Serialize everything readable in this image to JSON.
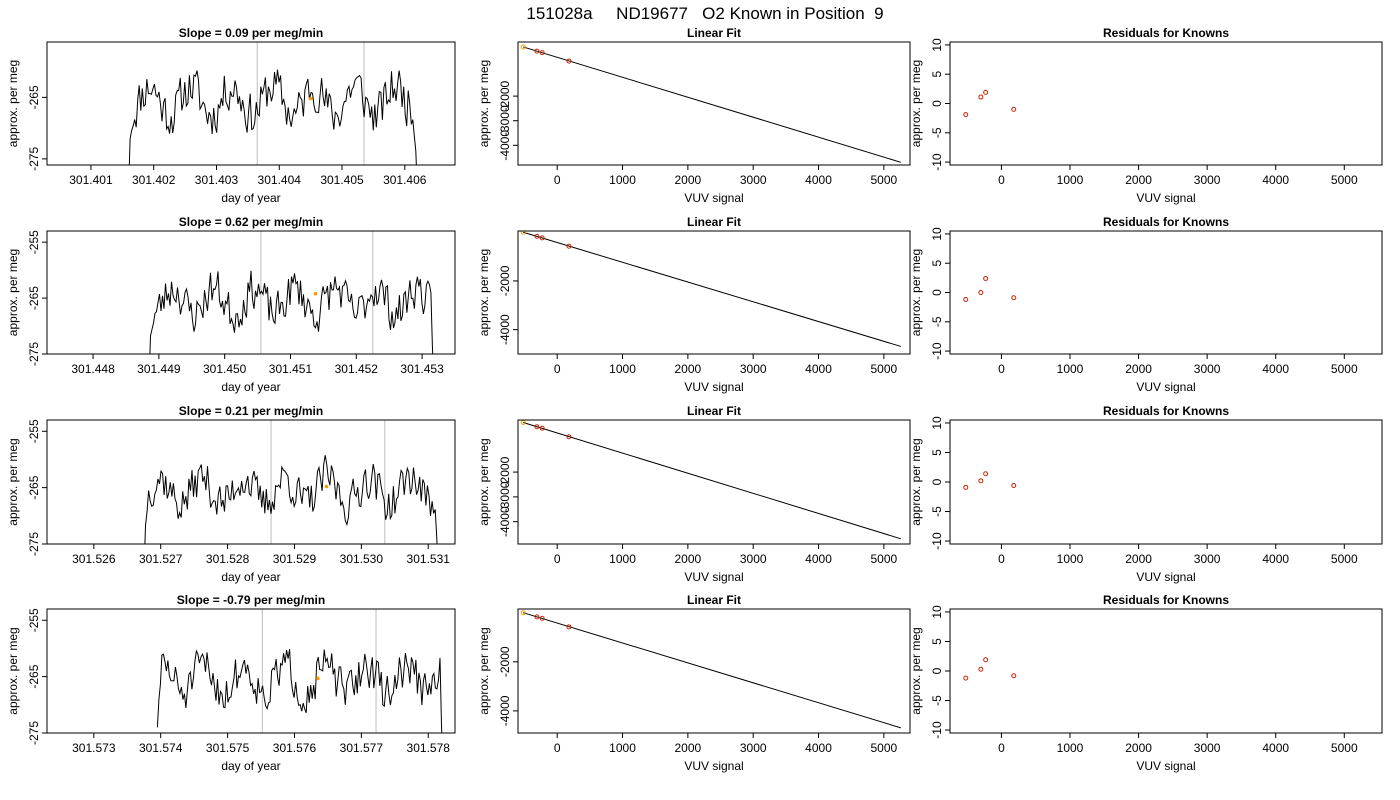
{
  "figure": {
    "title": "151028a     ND19677   O2 Known in Position  9",
    "colors": {
      "line": "#000000",
      "vline": "#c8c8c8",
      "resid_point": "#cc2200",
      "known_point": "#ff9900",
      "fit_point": "#cc2200"
    }
  },
  "chart_data": [
    {
      "type": "line",
      "row": 1,
      "panel": "timeseries",
      "title": "Slope =  0.09  per meg/min",
      "xlabel": "day of year",
      "ylabel": "approx. per meg",
      "xlim": [
        301.4003,
        301.4068
      ],
      "ylim": [
        -276,
        -256
      ],
      "xticks": [
        "301.401",
        "301.402",
        "301.403",
        "301.404",
        "301.405",
        "301.406"
      ],
      "yticks": [
        -265,
        -275
      ],
      "trace_range": [
        301.4016,
        301.4062
      ],
      "trace_start": -280,
      "trace_end": -280,
      "trace_seed": 11,
      "vlines": [
        301.40365,
        301.40535
      ],
      "marker": {
        "x": 301.4045,
        "y": -265.2
      }
    },
    {
      "type": "line",
      "row": 1,
      "panel": "linear_fit",
      "title": "Linear Fit",
      "xlabel": "VUV signal",
      "ylabel": "approx. per meg",
      "xlim": [
        -600,
        5400
      ],
      "ylim": [
        -4800,
        200
      ],
      "xticks": [
        0,
        1000,
        2000,
        3000,
        4000,
        5000
      ],
      "yticks": [
        -2000,
        -3000,
        -4000
      ],
      "line": {
        "x": [
          -520,
          5260
        ],
        "y": [
          -1,
          -4690
        ]
      },
      "points": [
        {
          "x": -520,
          "y": -1
        },
        {
          "x": -310,
          "y": -170
        },
        {
          "x": -230,
          "y": -232
        },
        {
          "x": 180,
          "y": -576
        }
      ]
    },
    {
      "type": "scatter",
      "row": 1,
      "panel": "residuals",
      "title": "Residuals for Knowns",
      "xlabel": "VUV signal",
      "ylabel": "approx. per meg",
      "xlim": [
        -750,
        5550
      ],
      "ylim": [
        -10.5,
        10.5
      ],
      "xticks": [
        0,
        1000,
        2000,
        3000,
        4000,
        5000
      ],
      "yticks": [
        10,
        5,
        0,
        -5,
        -10
      ],
      "points": [
        {
          "x": -520,
          "y": -1.9
        },
        {
          "x": -300,
          "y": 1.1
        },
        {
          "x": -230,
          "y": 1.9
        },
        {
          "x": 180,
          "y": -1.0
        }
      ]
    },
    {
      "type": "line",
      "row": 2,
      "panel": "timeseries",
      "title": "Slope =  0.62  per meg/min",
      "xlabel": "day of year",
      "ylabel": "approx. per meg",
      "xlim": [
        301.4473,
        301.4535
      ],
      "ylim": [
        -275,
        -253
      ],
      "xticks": [
        "301.448",
        "301.449",
        "301.450",
        "301.451",
        "301.452",
        "301.453"
      ],
      "yticks": [
        -255,
        -265,
        -275
      ],
      "trace_range": [
        301.44885,
        301.45318
      ],
      "trace_start": -280,
      "trace_end": -280,
      "trace_seed": 23,
      "vlines": [
        301.45055,
        301.45225
      ],
      "marker": {
        "x": 301.45138,
        "y": -264.2
      }
    },
    {
      "type": "line",
      "row": 2,
      "panel": "linear_fit",
      "title": "Linear Fit",
      "xlabel": "VUV signal",
      "ylabel": "approx. per meg",
      "xlim": [
        -600,
        5400
      ],
      "ylim": [
        -5000,
        50
      ],
      "xticks": [
        0,
        1000,
        2000,
        3000,
        4000,
        5000
      ],
      "yticks": [
        -2000,
        -4000
      ],
      "line": {
        "x": [
          -520,
          5260
        ],
        "y": [
          -1,
          -4690
        ]
      },
      "points": [
        {
          "x": -520,
          "y": -1
        },
        {
          "x": -310,
          "y": -170
        },
        {
          "x": -230,
          "y": -232
        },
        {
          "x": 180,
          "y": -576
        }
      ]
    },
    {
      "type": "scatter",
      "row": 2,
      "panel": "residuals",
      "title": "Residuals for Knowns",
      "xlabel": "VUV signal",
      "ylabel": "approx. per meg",
      "xlim": [
        -750,
        5550
      ],
      "ylim": [
        -10.5,
        10.5
      ],
      "xticks": [
        0,
        1000,
        2000,
        3000,
        4000,
        5000
      ],
      "yticks": [
        10,
        5,
        0,
        -5,
        -10
      ],
      "points": [
        {
          "x": -520,
          "y": -1.2
        },
        {
          "x": -300,
          "y": 0.0
        },
        {
          "x": -230,
          "y": 2.4
        },
        {
          "x": 180,
          "y": -0.9
        }
      ]
    },
    {
      "type": "line",
      "row": 3,
      "panel": "timeseries",
      "title": "Slope =  0.21  per meg/min",
      "xlabel": "day of year",
      "ylabel": "approx. per meg",
      "xlim": [
        301.5253,
        301.5314
      ],
      "ylim": [
        -275,
        -253
      ],
      "xticks": [
        "301.526",
        "301.527",
        "301.528",
        "301.529",
        "301.530",
        "301.531"
      ],
      "yticks": [
        -255,
        -265,
        -275
      ],
      "trace_range": [
        301.52675,
        301.53115
      ],
      "trace_start": -280,
      "trace_end": -280,
      "trace_seed": 37,
      "vlines": [
        301.52865,
        301.53035
      ],
      "marker": {
        "x": 301.52948,
        "y": -264.8
      }
    },
    {
      "type": "line",
      "row": 3,
      "panel": "linear_fit",
      "title": "Linear Fit",
      "xlabel": "VUV signal",
      "ylabel": "approx. per meg",
      "xlim": [
        -600,
        5400
      ],
      "ylim": [
        -4900,
        100
      ],
      "xticks": [
        0,
        1000,
        2000,
        3000,
        4000,
        5000
      ],
      "yticks": [
        -2000,
        -3000,
        -4000
      ],
      "line": {
        "x": [
          -520,
          5260
        ],
        "y": [
          -1,
          -4690
        ]
      },
      "points": [
        {
          "x": -520,
          "y": -1
        },
        {
          "x": -310,
          "y": -170
        },
        {
          "x": -230,
          "y": -232
        },
        {
          "x": 180,
          "y": -576
        }
      ]
    },
    {
      "type": "scatter",
      "row": 3,
      "panel": "residuals",
      "title": "Residuals for Knowns",
      "xlabel": "VUV signal",
      "ylabel": "approx. per meg",
      "xlim": [
        -750,
        5550
      ],
      "ylim": [
        -10.5,
        10.5
      ],
      "xticks": [
        0,
        1000,
        2000,
        3000,
        4000,
        5000
      ],
      "yticks": [
        10,
        5,
        0,
        -5,
        -10
      ],
      "points": [
        {
          "x": -520,
          "y": -0.9
        },
        {
          "x": -300,
          "y": 0.2
        },
        {
          "x": -230,
          "y": 1.4
        },
        {
          "x": 180,
          "y": -0.6
        }
      ]
    },
    {
      "type": "line",
      "row": 4,
      "panel": "timeseries",
      "title": "Slope =  -0.79  per meg/min",
      "xlabel": "day of year",
      "ylabel": "approx. per meg",
      "xlim": [
        301.5723,
        301.5784
      ],
      "ylim": [
        -275,
        -253
      ],
      "xticks": [
        "301.573",
        "301.574",
        "301.575",
        "301.576",
        "301.577",
        "301.578"
      ],
      "yticks": [
        -255,
        -265,
        -275
      ],
      "trace_range": [
        301.57395,
        301.57822
      ],
      "trace_start": -274,
      "trace_end": -280,
      "trace_seed": 51,
      "vlines": [
        301.57552,
        301.57722
      ],
      "marker": {
        "x": 301.57635,
        "y": -265.3
      }
    },
    {
      "type": "line",
      "row": 4,
      "panel": "linear_fit",
      "title": "Linear Fit",
      "xlabel": "VUV signal",
      "ylabel": "approx. per meg",
      "xlim": [
        -600,
        5400
      ],
      "ylim": [
        -4900,
        150
      ],
      "xticks": [
        0,
        1000,
        2000,
        3000,
        4000,
        5000
      ],
      "yticks": [
        -2000,
        -4000
      ],
      "line": {
        "x": [
          -520,
          5260
        ],
        "y": [
          -1,
          -4690
        ]
      },
      "points": [
        {
          "x": -520,
          "y": -1
        },
        {
          "x": -310,
          "y": -170
        },
        {
          "x": -230,
          "y": -232
        },
        {
          "x": 180,
          "y": -576
        }
      ]
    },
    {
      "type": "scatter",
      "row": 4,
      "panel": "residuals",
      "title": "Residuals for Knowns",
      "xlabel": "VUV signal",
      "ylabel": "approx. per meg",
      "xlim": [
        -750,
        5550
      ],
      "ylim": [
        -10.5,
        10.5
      ],
      "xticks": [
        0,
        1000,
        2000,
        3000,
        4000,
        5000
      ],
      "yticks": [
        10,
        5,
        0,
        -5,
        -10
      ],
      "points": [
        {
          "x": -520,
          "y": -1.2
        },
        {
          "x": -300,
          "y": 0.3
        },
        {
          "x": -230,
          "y": 1.9
        },
        {
          "x": 180,
          "y": -0.8
        }
      ]
    }
  ]
}
